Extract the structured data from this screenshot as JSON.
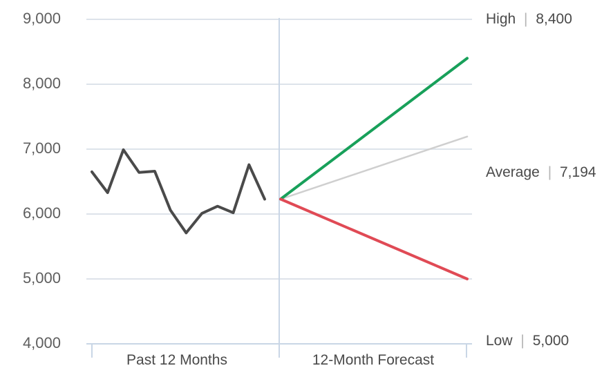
{
  "chart_data": {
    "type": "line",
    "ylim": [
      4000,
      9000
    ],
    "y_ticks": [
      "9,000",
      "8,000",
      "7,000",
      "6,000",
      "5,000",
      "4,000"
    ],
    "y_tick_values": [
      9000,
      8000,
      7000,
      6000,
      5000,
      4000
    ],
    "grid": true,
    "sections": [
      "Past 12 Months",
      "12-Month Forecast"
    ],
    "series": [
      {
        "role": "past",
        "color": "#4a4a4a",
        "period": "Past 12 Months",
        "values": [
          6650,
          6330,
          6990,
          6640,
          6660,
          6060,
          5710,
          6010,
          6120,
          6020,
          6760,
          6230
        ]
      },
      {
        "role": "high",
        "color": "#18a05a",
        "period": "12-Month Forecast",
        "values": [
          6230,
          8400
        ]
      },
      {
        "role": "average",
        "color": "#cfcfcf",
        "period": "12-Month Forecast",
        "values": [
          6230,
          7194
        ]
      },
      {
        "role": "low",
        "color": "#e04a55",
        "period": "12-Month Forecast",
        "values": [
          6230,
          5000
        ]
      }
    ],
    "annotations": [
      {
        "name": "High",
        "value": "8,400"
      },
      {
        "name": "Average",
        "value": "7,194"
      },
      {
        "name": "Low",
        "value": "5,000"
      }
    ],
    "separator": "|"
  }
}
